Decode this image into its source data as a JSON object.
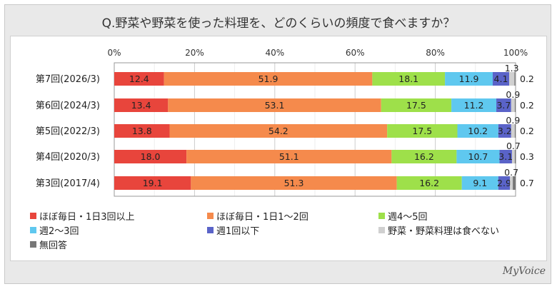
{
  "chart_data": {
    "type": "bar",
    "stacked": true,
    "orientation": "horizontal",
    "title": "Q.野菜や野菜を使った料理を、どのくらいの頻度で食べますか？",
    "xlim": [
      0,
      100
    ],
    "ticks": [
      "0%",
      "20%",
      "40%",
      "60%",
      "80%",
      "100%"
    ],
    "categories": [
      "第7回(2026/3)",
      "第6回(2024/3)",
      "第5回(2022/3)",
      "第4回(2020/3)",
      "第3回(2017/4)"
    ],
    "series": [
      {
        "name": "ほぼ毎日・1日3回以上",
        "color": "#e8453c",
        "values": [
          12.4,
          13.4,
          13.8,
          18.0,
          19.1
        ]
      },
      {
        "name": "ほぼ毎日・1日1～2回",
        "color": "#f58a4c",
        "values": [
          51.9,
          53.1,
          54.2,
          51.1,
          51.3
        ]
      },
      {
        "name": "週4～5回",
        "color": "#9ee04a",
        "values": [
          18.1,
          17.5,
          17.5,
          16.2,
          16.2
        ]
      },
      {
        "name": "週2～3回",
        "color": "#5fc8ef",
        "values": [
          11.9,
          11.2,
          10.2,
          10.7,
          9.1
        ]
      },
      {
        "name": "週1回以下",
        "color": "#5a63c8",
        "values": [
          4.1,
          3.7,
          3.2,
          3.1,
          2.9
        ]
      },
      {
        "name": "野菜・野菜料理は食べない",
        "color": "#d0d0d0",
        "values": [
          1.3,
          0.9,
          0.9,
          0.7,
          0.7
        ]
      },
      {
        "name": "無回答",
        "color": "#777777",
        "values": [
          0.2,
          0.2,
          0.2,
          0.3,
          0.7
        ]
      }
    ],
    "grid": true,
    "legend": "bottom"
  },
  "logo": "MyVoice"
}
